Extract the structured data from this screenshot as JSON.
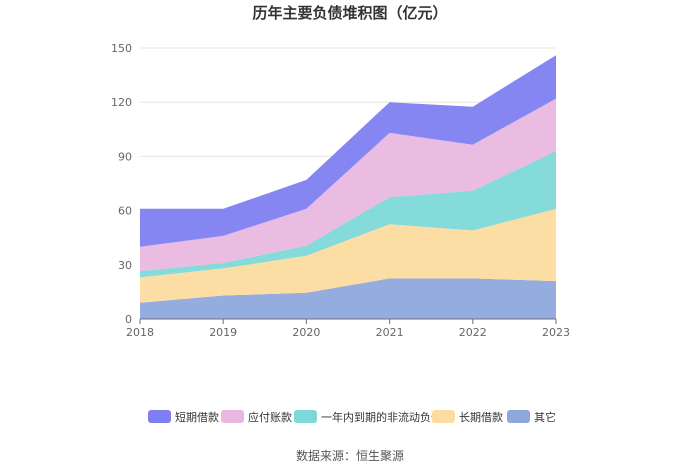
{
  "chart_data": {
    "type": "area",
    "stacked": true,
    "title": "历年主要负债堆积图（亿元）",
    "x": [
      "2018",
      "2019",
      "2020",
      "2021",
      "2022",
      "2023"
    ],
    "ylim": [
      0,
      150
    ],
    "yticks": [
      "0",
      "30",
      "60",
      "90",
      "120",
      "150"
    ],
    "grid": true,
    "legend_position": "bottom",
    "series": [
      {
        "name": "其它",
        "color": "#8fa8dc",
        "values": [
          9,
          13,
          14.5,
          22.5,
          22.5,
          21
        ]
      },
      {
        "name": "长期借款",
        "color": "#fcdca0",
        "values": [
          14,
          15,
          20.5,
          30,
          26.5,
          40
        ]
      },
      {
        "name": "一年内到期的非流动负债",
        "color": "#7ed8d8",
        "values": [
          3.5,
          3,
          5.5,
          15,
          22,
          32
        ]
      },
      {
        "name": "应付账款",
        "color": "#e9b8e0",
        "values": [
          13.5,
          15,
          20.5,
          35.5,
          25.5,
          29
        ]
      },
      {
        "name": "短期借款",
        "color": "#7f7ff2",
        "values": [
          21,
          15,
          16,
          17,
          21,
          24
        ]
      }
    ],
    "legend_order": [
      "短期借款",
      "应付账款",
      "一年内到期的非流动负债",
      "长期借款",
      "其它"
    ]
  },
  "source": "数据来源：恒生聚源"
}
